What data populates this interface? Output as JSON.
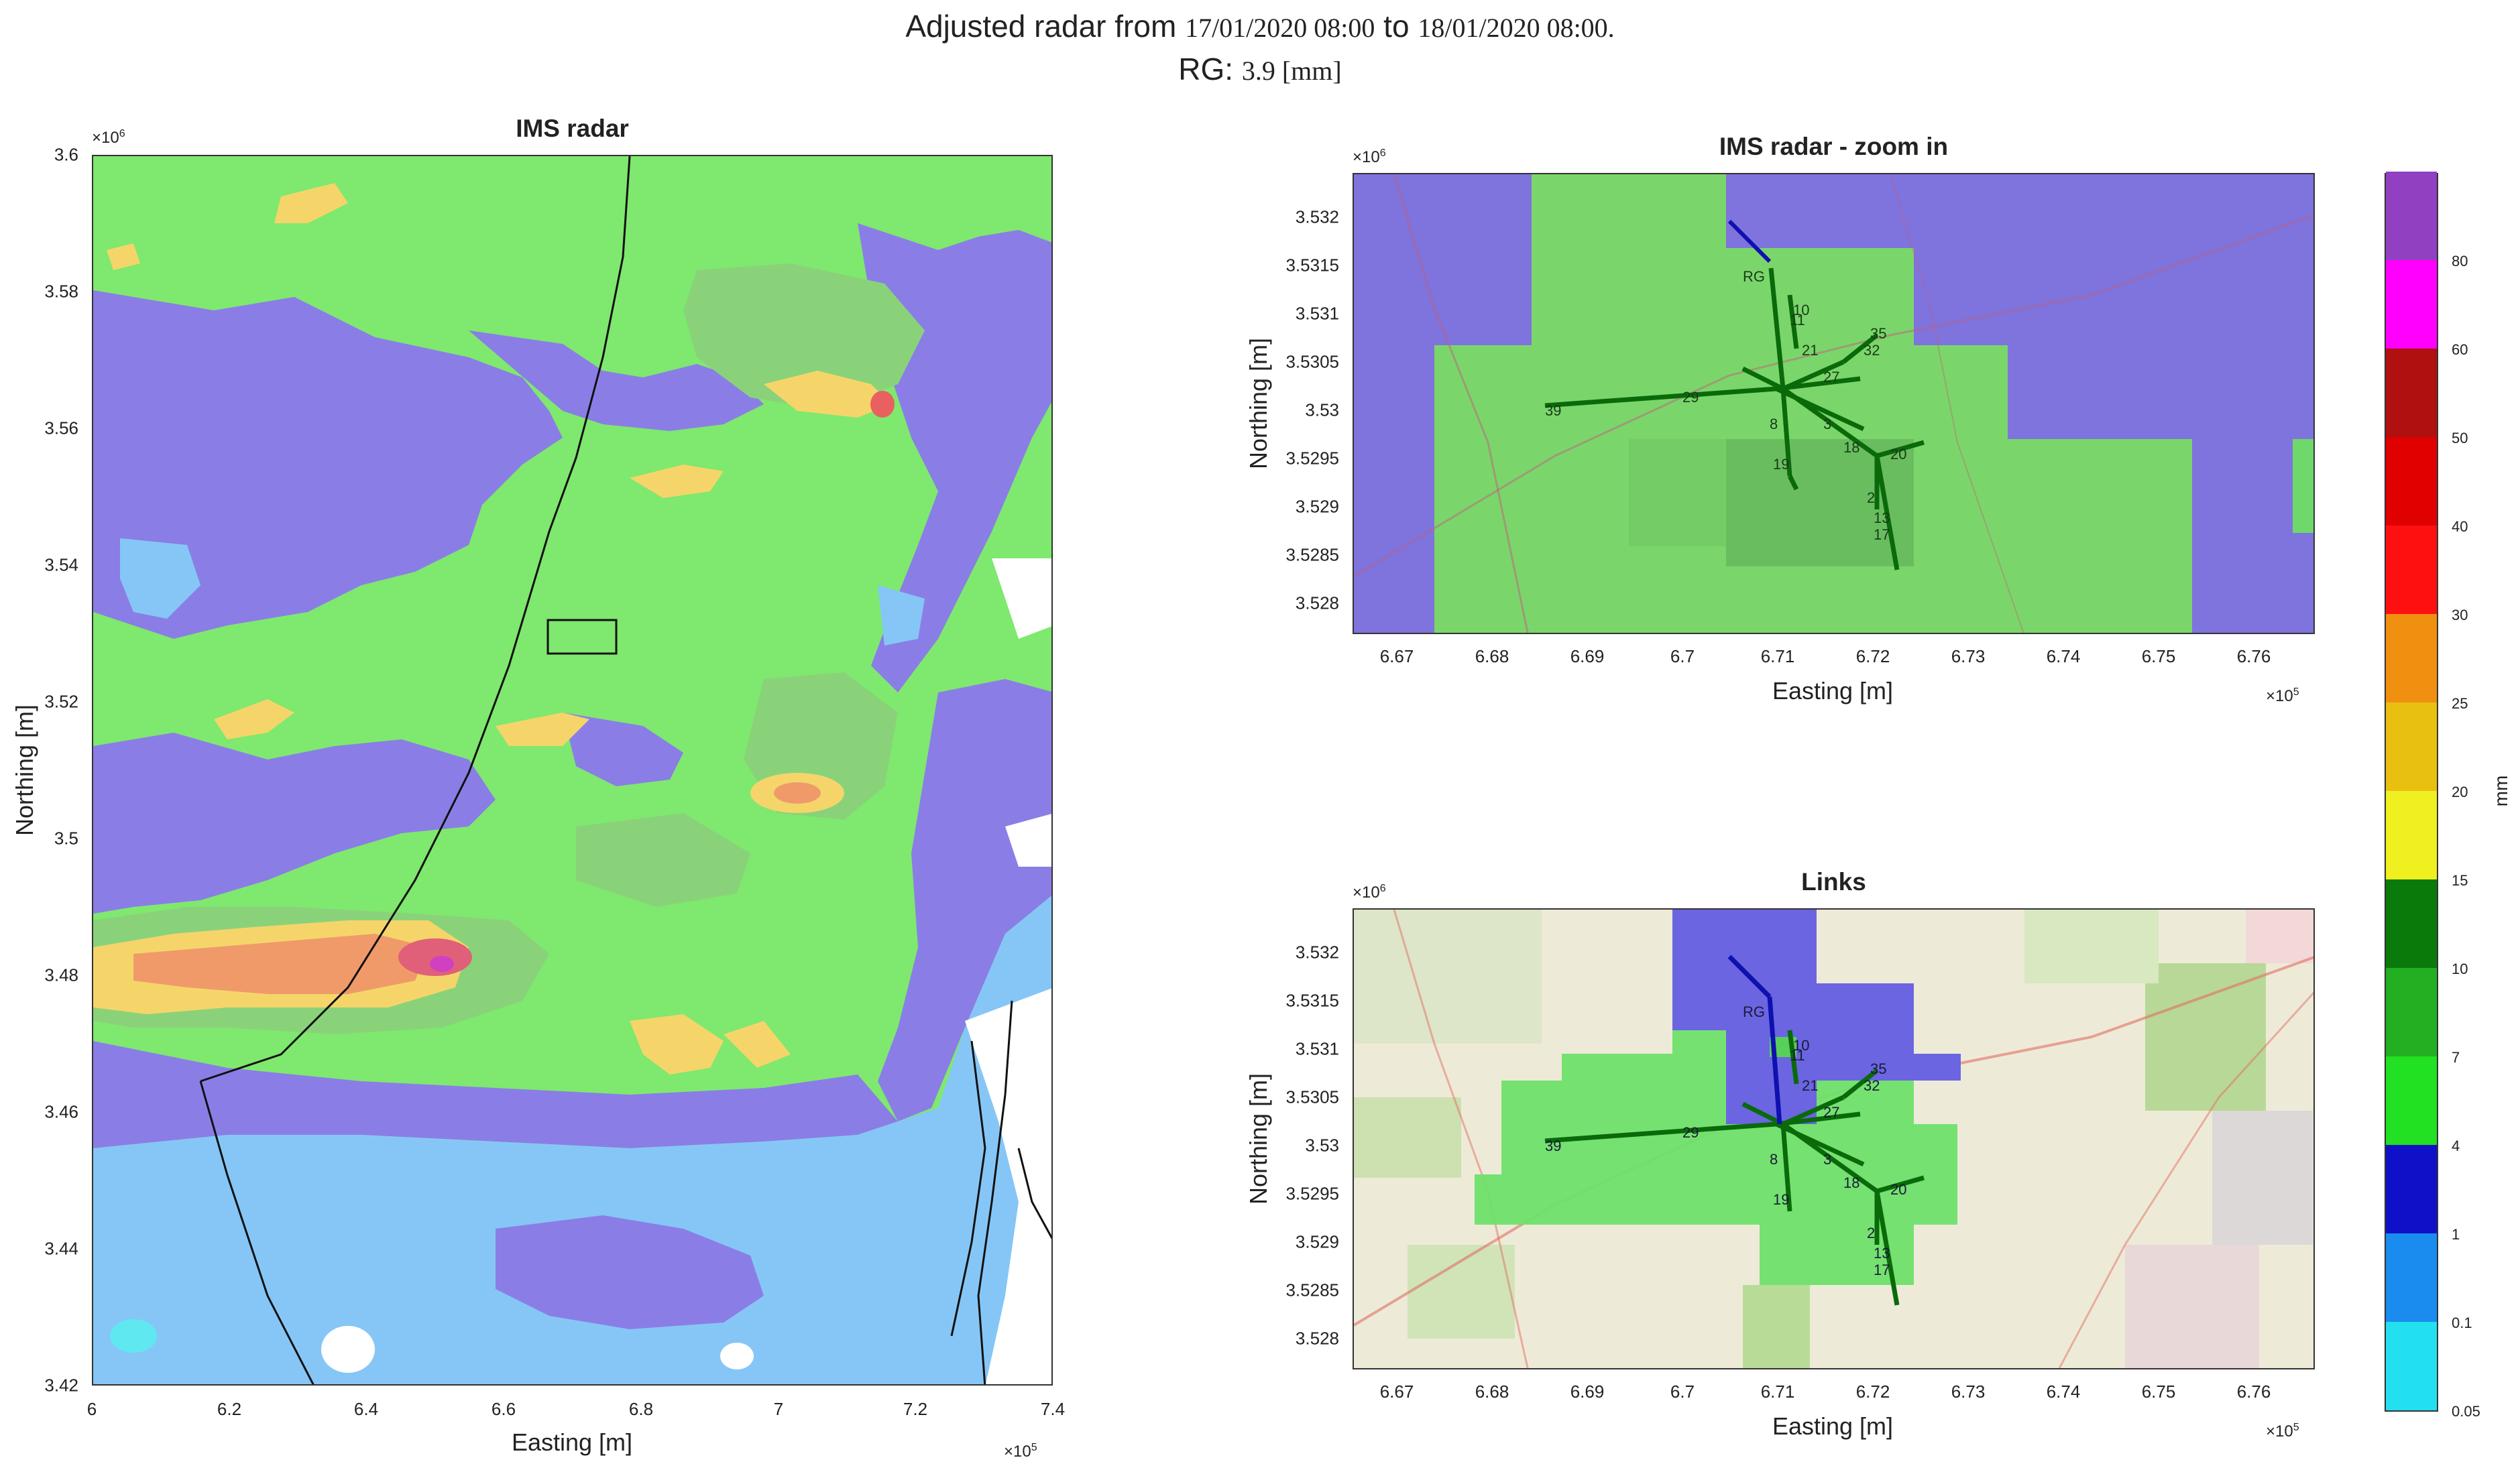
{
  "figure": {
    "title_prefix": "Adjusted radar from ",
    "title_start": "17/01/2020 08:00",
    "title_mid": " to ",
    "title_end": "18/01/2020 08:00.",
    "rg_prefix": "RG: ",
    "rg_value": "3.9 [mm]"
  },
  "colorbar": {
    "label": "mm",
    "ticks": [
      "0.05",
      "0.1",
      "1",
      "4",
      "7",
      "10",
      "15",
      "20",
      "25",
      "30",
      "40",
      "50",
      "60",
      "80"
    ],
    "colors": [
      "#22e0f0",
      "#1a8cf0",
      "#1010c8",
      "#22e022",
      "#22b022",
      "#0a7a0a",
      "#f0f020",
      "#e8c010",
      "#f09010",
      "#ff1010",
      "#e00000",
      "#b01010",
      "#ff00ff",
      "#9040c0"
    ]
  },
  "chart_data": [
    {
      "type": "heatmap",
      "title": "IMS radar",
      "xlabel": "Easting [m]",
      "ylabel": "Northing [m]",
      "x_exponent": "×10",
      "x_exponent_power": "5",
      "y_exponent": "×10",
      "y_exponent_power": "6",
      "x_ticks": [
        "6",
        "6.2",
        "6.4",
        "6.6",
        "6.8",
        "7",
        "7.2",
        "7.4"
      ],
      "y_ticks": [
        "3.6",
        "3.58",
        "3.56",
        "3.54",
        "3.52",
        "3.5",
        "3.48",
        "3.46",
        "3.44",
        "3.42"
      ],
      "xlim": [
        600000,
        740000
      ],
      "ylim": [
        3420000,
        3600000
      ],
      "colorscale": "mm"
    },
    {
      "type": "heatmap",
      "title": "IMS radar - zoom in",
      "xlabel": "Easting [m]",
      "ylabel": "Northing [m]",
      "x_exponent": "×10",
      "x_exponent_power": "5",
      "y_exponent": "×10",
      "y_exponent_power": "6",
      "x_ticks": [
        "6.67",
        "6.68",
        "6.69",
        "6.7",
        "6.71",
        "6.72",
        "6.73",
        "6.74",
        "6.75",
        "6.76"
      ],
      "y_ticks": [
        "3.532",
        "3.5315",
        "3.531",
        "3.5305",
        "3.53",
        "3.5295",
        "3.529",
        "3.5285",
        "3.528"
      ],
      "xlim": [
        666500,
        676600
      ],
      "ylim": [
        3527700,
        3532500
      ],
      "link_labels": [
        "RG",
        "10",
        "11",
        "21",
        "35",
        "32",
        "39",
        "29",
        "27",
        "8",
        "3",
        "18",
        "19",
        "20",
        "2",
        "13",
        "17"
      ]
    },
    {
      "type": "heatmap",
      "title": "Links",
      "xlabel": "Easting [m]",
      "ylabel": "Northing [m]",
      "x_exponent": "×10",
      "x_exponent_power": "5",
      "y_exponent": "×10",
      "y_exponent_power": "6",
      "x_ticks": [
        "6.67",
        "6.68",
        "6.69",
        "6.7",
        "6.71",
        "6.72",
        "6.73",
        "6.74",
        "6.75",
        "6.76"
      ],
      "y_ticks": [
        "3.532",
        "3.5315",
        "3.531",
        "3.5305",
        "3.53",
        "3.5295",
        "3.529",
        "3.5285",
        "3.528"
      ],
      "xlim": [
        666500,
        676600
      ],
      "ylim": [
        3527700,
        3532500
      ],
      "link_labels": [
        "RG",
        "10",
        "11",
        "21",
        "35",
        "32",
        "39",
        "29",
        "27",
        "8",
        "3",
        "18",
        "19",
        "20",
        "2",
        "13",
        "17"
      ]
    }
  ]
}
